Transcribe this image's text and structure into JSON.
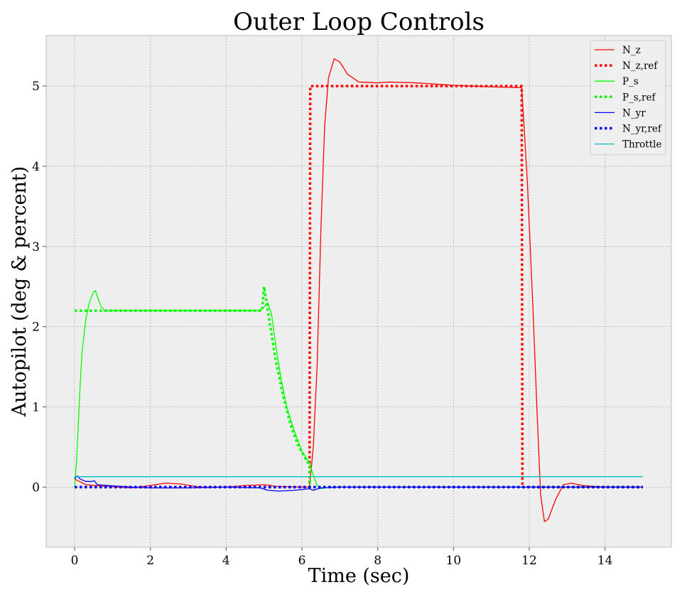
{
  "chart_data": {
    "type": "line",
    "title": "Outer Loop Controls",
    "xlabel": "Time (sec)",
    "ylabel": "Autopilot (deg & percent)",
    "xlim": [
      -0.75,
      15.75
    ],
    "ylim": [
      -0.75,
      5.63
    ],
    "x_ticks": [
      0,
      2,
      4,
      6,
      8,
      10,
      12,
      14
    ],
    "y_ticks": [
      0,
      1,
      2,
      3,
      4,
      5
    ],
    "grid": true,
    "legend_position": "top-right",
    "background": "#eeeeee",
    "series": [
      {
        "name": "N_z",
        "color": "#ff0000",
        "style": "solid",
        "points": [
          [
            0,
            0.1
          ],
          [
            0.3,
            0.03
          ],
          [
            0.8,
            0.01
          ],
          [
            1.5,
            -0.01
          ],
          [
            2,
            0.02
          ],
          [
            2.4,
            0.05
          ],
          [
            2.8,
            0.04
          ],
          [
            3.3,
            0
          ],
          [
            4,
            0
          ],
          [
            4.5,
            0.02
          ],
          [
            5,
            0.03
          ],
          [
            5.3,
            0.01
          ],
          [
            6,
            0
          ],
          [
            6.2,
            0
          ],
          [
            6.3,
            0.5
          ],
          [
            6.4,
            1.5
          ],
          [
            6.5,
            3.2
          ],
          [
            6.6,
            4.5
          ],
          [
            6.7,
            5.1
          ],
          [
            6.85,
            5.34
          ],
          [
            7,
            5.3
          ],
          [
            7.2,
            5.15
          ],
          [
            7.5,
            5.05
          ],
          [
            8,
            5.04
          ],
          [
            8.3,
            5.05
          ],
          [
            9,
            5.04
          ],
          [
            10,
            5.01
          ],
          [
            11,
            4.99
          ],
          [
            11.8,
            4.98
          ],
          [
            11.85,
            4.6
          ],
          [
            11.95,
            3.8
          ],
          [
            12.1,
            2.2
          ],
          [
            12.2,
            1
          ],
          [
            12.3,
            -0.1
          ],
          [
            12.4,
            -0.43
          ],
          [
            12.5,
            -0.4
          ],
          [
            12.7,
            -0.15
          ],
          [
            12.9,
            0.03
          ],
          [
            13.1,
            0.05
          ],
          [
            13.4,
            0.02
          ],
          [
            14,
            0
          ],
          [
            15,
            0
          ]
        ]
      },
      {
        "name": "N_z,ref",
        "color": "#ff0000",
        "style": "dotted",
        "points": [
          [
            0,
            0
          ],
          [
            6.2,
            0
          ],
          [
            6.22,
            5
          ],
          [
            11.8,
            5
          ],
          [
            11.82,
            0
          ],
          [
            15,
            0
          ]
        ]
      },
      {
        "name": "P_s",
        "color": "#00ff00",
        "style": "solid",
        "points": [
          [
            0,
            0
          ],
          [
            0.05,
            0.3
          ],
          [
            0.1,
            0.8
          ],
          [
            0.15,
            1.3
          ],
          [
            0.2,
            1.7
          ],
          [
            0.3,
            2.1
          ],
          [
            0.4,
            2.32
          ],
          [
            0.5,
            2.43
          ],
          [
            0.55,
            2.45
          ],
          [
            0.62,
            2.35
          ],
          [
            0.7,
            2.25
          ],
          [
            0.8,
            2.2
          ],
          [
            1,
            2.2
          ],
          [
            4.9,
            2.2
          ],
          [
            5,
            2.25
          ],
          [
            5.1,
            2.3
          ],
          [
            5.2,
            2.15
          ],
          [
            5.3,
            1.8
          ],
          [
            5.45,
            1.35
          ],
          [
            5.6,
            1
          ],
          [
            5.8,
            0.7
          ],
          [
            6,
            0.45
          ],
          [
            6.2,
            0.3
          ],
          [
            6.3,
            0.15
          ],
          [
            6.4,
            0.02
          ],
          [
            6.5,
            -0.02
          ],
          [
            6.7,
            0
          ],
          [
            15,
            0
          ]
        ]
      },
      {
        "name": "P_s,ref",
        "color": "#00ff00",
        "style": "dotted",
        "points": [
          [
            0,
            2.2
          ],
          [
            4.95,
            2.2
          ],
          [
            5,
            2.5
          ],
          [
            5.1,
            2.2
          ],
          [
            5.3,
            1.6
          ],
          [
            5.5,
            1.15
          ],
          [
            5.7,
            0.78
          ],
          [
            5.9,
            0.52
          ],
          [
            6.1,
            0.35
          ],
          [
            6.2,
            0.28
          ],
          [
            6.21,
            0
          ],
          [
            15,
            0
          ]
        ]
      },
      {
        "name": "N_yr",
        "color": "#0000ff",
        "style": "solid",
        "points": [
          [
            0,
            0.1
          ],
          [
            0.07,
            0.14
          ],
          [
            0.15,
            0.1
          ],
          [
            0.3,
            0.07
          ],
          [
            0.45,
            0.07
          ],
          [
            0.52,
            0.08
          ],
          [
            0.6,
            0.03
          ],
          [
            0.9,
            0.02
          ],
          [
            1.5,
            0
          ],
          [
            2,
            -0.01
          ],
          [
            3,
            -0.01
          ],
          [
            4,
            0
          ],
          [
            4.9,
            -0.01
          ],
          [
            5.1,
            -0.04
          ],
          [
            5.4,
            -0.05
          ],
          [
            5.8,
            -0.04
          ],
          [
            6.2,
            -0.02
          ],
          [
            6.3,
            -0.04
          ],
          [
            6.5,
            -0.01
          ],
          [
            7,
            0
          ],
          [
            15,
            0
          ]
        ]
      },
      {
        "name": "N_yr,ref",
        "color": "#0000ff",
        "style": "dotted",
        "points": [
          [
            0,
            0
          ],
          [
            15,
            0
          ]
        ]
      },
      {
        "name": "Throttle",
        "color": "#00bfbf",
        "style": "solid",
        "points": [
          [
            0,
            0.13
          ],
          [
            15,
            0.13
          ]
        ]
      }
    ]
  }
}
